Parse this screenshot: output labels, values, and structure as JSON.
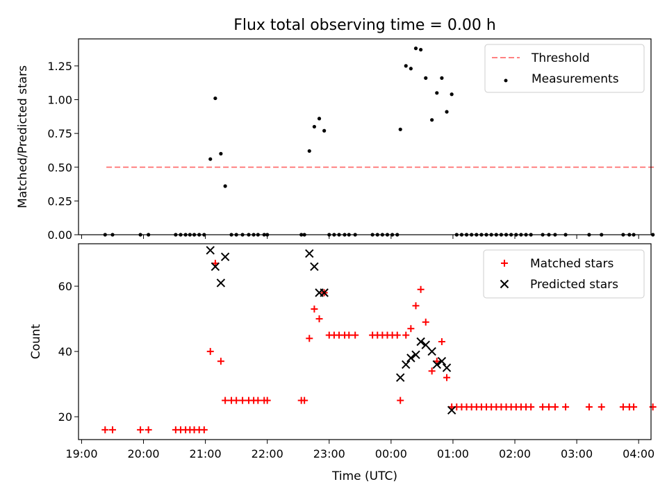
{
  "title": "Flux total observing time = 0.00 h",
  "chart_data": [
    {
      "type": "scatter",
      "xlabel": "",
      "ylabel": "Matched/Predicted stars",
      "xlim": [
        -0.05,
        9.2
      ],
      "ylim": [
        0,
        1.45
      ],
      "yticks": [
        0,
        0.25,
        0.5,
        0.75,
        1.0,
        1.25
      ],
      "ytick_labels": [
        "0.00",
        "0.25",
        "0.50",
        "0.75",
        "1.00",
        "1.25"
      ],
      "legend_position": "top-right",
      "threshold": {
        "name": "Threshold",
        "color": "#ff8080",
        "y": 0.5,
        "x_range": [
          0.4,
          9.25
        ]
      },
      "measurements": {
        "name": "Measurements",
        "color": "#000000",
        "points": [
          [
            0.38,
            0
          ],
          [
            0.5,
            0
          ],
          [
            0.95,
            0
          ],
          [
            1.08,
            0
          ],
          [
            1.52,
            0
          ],
          [
            1.6,
            0
          ],
          [
            1.68,
            0
          ],
          [
            1.75,
            0
          ],
          [
            1.82,
            0
          ],
          [
            1.9,
            0
          ],
          [
            1.98,
            0
          ],
          [
            2.08,
            0.56
          ],
          [
            2.16,
            1.01
          ],
          [
            2.25,
            0.6
          ],
          [
            2.32,
            0.36
          ],
          [
            2.42,
            0
          ],
          [
            2.5,
            0
          ],
          [
            2.6,
            0
          ],
          [
            2.7,
            0
          ],
          [
            2.78,
            0
          ],
          [
            2.85,
            0
          ],
          [
            2.95,
            0
          ],
          [
            3.0,
            0
          ],
          [
            3.55,
            0
          ],
          [
            3.6,
            0
          ],
          [
            3.68,
            0.62
          ],
          [
            3.76,
            0.8
          ],
          [
            3.84,
            0.86
          ],
          [
            3.92,
            0.77
          ],
          [
            4.0,
            0
          ],
          [
            4.08,
            0
          ],
          [
            4.16,
            0
          ],
          [
            4.25,
            0
          ],
          [
            4.32,
            0
          ],
          [
            4.42,
            0
          ],
          [
            4.7,
            0
          ],
          [
            4.78,
            0
          ],
          [
            4.86,
            0
          ],
          [
            4.94,
            0
          ],
          [
            5.02,
            0
          ],
          [
            5.1,
            0
          ],
          [
            5.15,
            0.78
          ],
          [
            5.24,
            1.25
          ],
          [
            5.32,
            1.23
          ],
          [
            5.4,
            1.38
          ],
          [
            5.48,
            1.37
          ],
          [
            5.56,
            1.16
          ],
          [
            5.66,
            0.85
          ],
          [
            5.74,
            1.05
          ],
          [
            5.82,
            1.16
          ],
          [
            5.9,
            0.91
          ],
          [
            5.98,
            1.04
          ],
          [
            6.06,
            0
          ],
          [
            6.14,
            0
          ],
          [
            6.22,
            0
          ],
          [
            6.3,
            0
          ],
          [
            6.38,
            0
          ],
          [
            6.46,
            0
          ],
          [
            6.54,
            0
          ],
          [
            6.62,
            0
          ],
          [
            6.7,
            0
          ],
          [
            6.78,
            0
          ],
          [
            6.86,
            0
          ],
          [
            6.94,
            0
          ],
          [
            7.02,
            0
          ],
          [
            7.1,
            0
          ],
          [
            7.18,
            0
          ],
          [
            7.26,
            0
          ],
          [
            7.45,
            0
          ],
          [
            7.55,
            0
          ],
          [
            7.65,
            0
          ],
          [
            7.82,
            0
          ],
          [
            8.2,
            0
          ],
          [
            8.4,
            0
          ],
          [
            8.75,
            0
          ],
          [
            8.85,
            0
          ],
          [
            8.92,
            0
          ],
          [
            9.23,
            0
          ]
        ]
      }
    },
    {
      "type": "scatter",
      "xlabel": "Time (UTC)",
      "ylabel": "Count",
      "xlim": [
        -0.05,
        9.2
      ],
      "ylim": [
        13,
        73
      ],
      "yticks": [
        20,
        40,
        60
      ],
      "ytick_labels": [
        "20",
        "40",
        "60"
      ],
      "xticks": [
        0,
        1,
        2,
        3,
        4,
        5,
        6,
        7,
        8,
        9
      ],
      "xtick_labels": [
        "19:00",
        "20:00",
        "21:00",
        "22:00",
        "23:00",
        "00:00",
        "01:00",
        "02:00",
        "03:00",
        "04:00"
      ],
      "legend_position": "top-right",
      "series": [
        {
          "name": "Matched stars",
          "color": "#ff0000",
          "marker": "plus",
          "points": [
            [
              0.38,
              16
            ],
            [
              0.5,
              16
            ],
            [
              0.95,
              16
            ],
            [
              1.08,
              16
            ],
            [
              1.52,
              16
            ],
            [
              1.6,
              16
            ],
            [
              1.68,
              16
            ],
            [
              1.75,
              16
            ],
            [
              1.82,
              16
            ],
            [
              1.9,
              16
            ],
            [
              1.98,
              16
            ],
            [
              2.08,
              40
            ],
            [
              2.16,
              67
            ],
            [
              2.25,
              37
            ],
            [
              2.32,
              25
            ],
            [
              2.42,
              25
            ],
            [
              2.5,
              25
            ],
            [
              2.6,
              25
            ],
            [
              2.7,
              25
            ],
            [
              2.78,
              25
            ],
            [
              2.85,
              25
            ],
            [
              2.95,
              25
            ],
            [
              3.0,
              25
            ],
            [
              3.55,
              25
            ],
            [
              3.6,
              25
            ],
            [
              3.68,
              44
            ],
            [
              3.76,
              53
            ],
            [
              3.84,
              50
            ],
            [
              3.92,
              58
            ],
            [
              4.0,
              45
            ],
            [
              4.08,
              45
            ],
            [
              4.16,
              45
            ],
            [
              4.25,
              45
            ],
            [
              4.32,
              45
            ],
            [
              4.42,
              45
            ],
            [
              4.7,
              45
            ],
            [
              4.78,
              45
            ],
            [
              4.86,
              45
            ],
            [
              4.94,
              45
            ],
            [
              5.02,
              45
            ],
            [
              5.1,
              45
            ],
            [
              5.15,
              25
            ],
            [
              5.24,
              45
            ],
            [
              5.32,
              47
            ],
            [
              5.4,
              54
            ],
            [
              5.48,
              59
            ],
            [
              5.56,
              49
            ],
            [
              5.66,
              34
            ],
            [
              5.74,
              37
            ],
            [
              5.82,
              43
            ],
            [
              5.9,
              32
            ],
            [
              5.98,
              23
            ],
            [
              6.06,
              23
            ],
            [
              6.14,
              23
            ],
            [
              6.22,
              23
            ],
            [
              6.3,
              23
            ],
            [
              6.38,
              23
            ],
            [
              6.46,
              23
            ],
            [
              6.54,
              23
            ],
            [
              6.62,
              23
            ],
            [
              6.7,
              23
            ],
            [
              6.78,
              23
            ],
            [
              6.86,
              23
            ],
            [
              6.94,
              23
            ],
            [
              7.02,
              23
            ],
            [
              7.1,
              23
            ],
            [
              7.18,
              23
            ],
            [
              7.26,
              23
            ],
            [
              7.45,
              23
            ],
            [
              7.55,
              23
            ],
            [
              7.65,
              23
            ],
            [
              7.82,
              23
            ],
            [
              8.2,
              23
            ],
            [
              8.4,
              23
            ],
            [
              8.75,
              23
            ],
            [
              8.85,
              23
            ],
            [
              8.92,
              23
            ],
            [
              9.23,
              23
            ]
          ]
        },
        {
          "name": "Predicted stars",
          "color": "#000000",
          "marker": "x",
          "points": [
            [
              2.08,
              71
            ],
            [
              2.16,
              66
            ],
            [
              2.25,
              61
            ],
            [
              2.32,
              69
            ],
            [
              3.68,
              70
            ],
            [
              3.76,
              66
            ],
            [
              3.84,
              58
            ],
            [
              3.92,
              58
            ],
            [
              5.15,
              32
            ],
            [
              5.24,
              36
            ],
            [
              5.32,
              38
            ],
            [
              5.4,
              39
            ],
            [
              5.48,
              43
            ],
            [
              5.56,
              42
            ],
            [
              5.66,
              40
            ],
            [
              5.74,
              36
            ],
            [
              5.82,
              37
            ],
            [
              5.9,
              35
            ],
            [
              5.98,
              22
            ]
          ]
        }
      ]
    }
  ]
}
